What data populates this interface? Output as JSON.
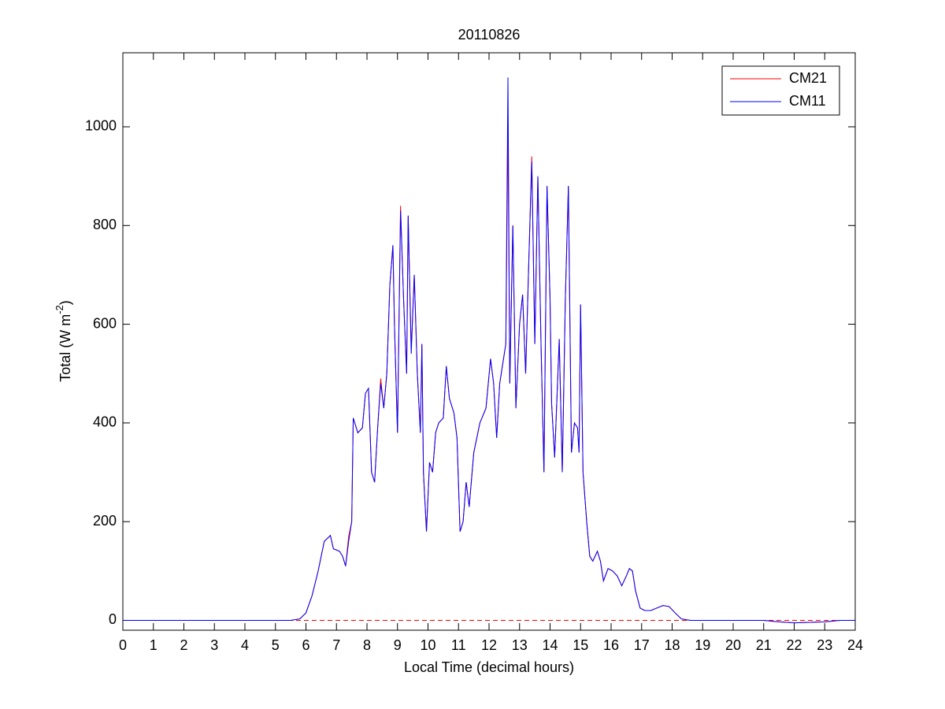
{
  "chart_data": {
    "type": "line",
    "title": "20110826",
    "xlabel": "Local Time (decimal hours)",
    "ylabel": {
      "base": "Total (W m",
      "superscript": "-2",
      "close": ")"
    },
    "xlim": [
      0,
      24
    ],
    "xticks": [
      0,
      1,
      2,
      3,
      4,
      5,
      6,
      7,
      8,
      9,
      10,
      11,
      12,
      13,
      14,
      15,
      16,
      17,
      18,
      19,
      20,
      21,
      22,
      23,
      24
    ],
    "ylim": [
      -20,
      1150
    ],
    "yticks": [
      0,
      200,
      400,
      600,
      800,
      1000
    ],
    "grid": false,
    "legend": "northeast",
    "hline": {
      "value": 0,
      "color": "#ff0000",
      "style": "dashed"
    },
    "x": [
      0,
      5.5,
      5.8,
      6.0,
      6.2,
      6.4,
      6.6,
      6.8,
      6.9,
      7.1,
      7.2,
      7.3,
      7.4,
      7.5,
      7.55,
      7.7,
      7.85,
      7.95,
      8.05,
      8.15,
      8.25,
      8.35,
      8.45,
      8.55,
      8.65,
      8.75,
      8.85,
      8.9,
      9.0,
      9.1,
      9.2,
      9.3,
      9.35,
      9.45,
      9.55,
      9.65,
      9.75,
      9.8,
      9.85,
      9.95,
      10.05,
      10.15,
      10.25,
      10.35,
      10.5,
      10.6,
      10.7,
      10.85,
      10.95,
      11.05,
      11.15,
      11.25,
      11.35,
      11.5,
      11.7,
      11.9,
      12.05,
      12.15,
      12.25,
      12.35,
      12.55,
      12.62,
      12.68,
      12.78,
      12.88,
      13.0,
      13.1,
      13.2,
      13.3,
      13.4,
      13.5,
      13.6,
      13.7,
      13.8,
      13.9,
      14.0,
      14.05,
      14.15,
      14.3,
      14.4,
      14.5,
      14.6,
      14.7,
      14.8,
      14.9,
      14.95,
      15.0,
      15.08,
      15.2,
      15.3,
      15.4,
      15.55,
      15.65,
      15.75,
      15.9,
      16.05,
      16.2,
      16.35,
      16.5,
      16.6,
      16.7,
      16.8,
      16.95,
      17.1,
      17.3,
      17.5,
      17.7,
      17.9,
      18.1,
      18.3,
      18.6,
      21,
      21.5,
      22,
      22.5,
      23,
      23.5,
      24
    ],
    "series": [
      {
        "name": "CM21",
        "color": "#ff0000",
        "values": [
          0,
          0,
          3,
          15,
          50,
          100,
          160,
          172,
          145,
          140,
          130,
          110,
          170,
          200,
          410,
          380,
          390,
          460,
          470,
          300,
          280,
          390,
          490,
          430,
          500,
          680,
          760,
          600,
          380,
          840,
          650,
          500,
          820,
          550,
          700,
          500,
          380,
          560,
          300,
          180,
          320,
          300,
          380,
          400,
          410,
          515,
          450,
          420,
          370,
          180,
          200,
          280,
          230,
          340,
          400,
          430,
          530,
          480,
          370,
          480,
          560,
          1000,
          480,
          800,
          430,
          600,
          660,
          500,
          720,
          940,
          560,
          900,
          570,
          300,
          880,
          650,
          440,
          330,
          570,
          300,
          650,
          880,
          340,
          400,
          390,
          340,
          640,
          300,
          200,
          130,
          120,
          140,
          120,
          80,
          105,
          100,
          90,
          70,
          90,
          105,
          100,
          60,
          25,
          20,
          20,
          25,
          30,
          28,
          15,
          3,
          0,
          0,
          -3,
          -5,
          -4,
          -3,
          0,
          0
        ]
      },
      {
        "name": "CM11",
        "color": "#0000ff",
        "values": [
          0,
          0,
          3,
          15,
          50,
          100,
          160,
          172,
          145,
          140,
          130,
          110,
          160,
          200,
          410,
          380,
          390,
          460,
          470,
          300,
          280,
          390,
          480,
          430,
          500,
          680,
          760,
          600,
          380,
          830,
          650,
          500,
          820,
          540,
          700,
          500,
          380,
          560,
          300,
          180,
          320,
          300,
          380,
          400,
          410,
          515,
          450,
          420,
          370,
          180,
          200,
          280,
          230,
          340,
          400,
          430,
          530,
          480,
          370,
          480,
          560,
          1100,
          480,
          800,
          430,
          600,
          660,
          500,
          720,
          930,
          560,
          900,
          570,
          300,
          880,
          650,
          440,
          330,
          570,
          300,
          650,
          880,
          340,
          400,
          390,
          340,
          640,
          300,
          200,
          130,
          120,
          140,
          120,
          80,
          105,
          100,
          90,
          70,
          90,
          105,
          100,
          60,
          25,
          20,
          20,
          25,
          30,
          28,
          15,
          3,
          0,
          0,
          -3,
          -5,
          -4,
          -3,
          0,
          0
        ]
      }
    ]
  }
}
